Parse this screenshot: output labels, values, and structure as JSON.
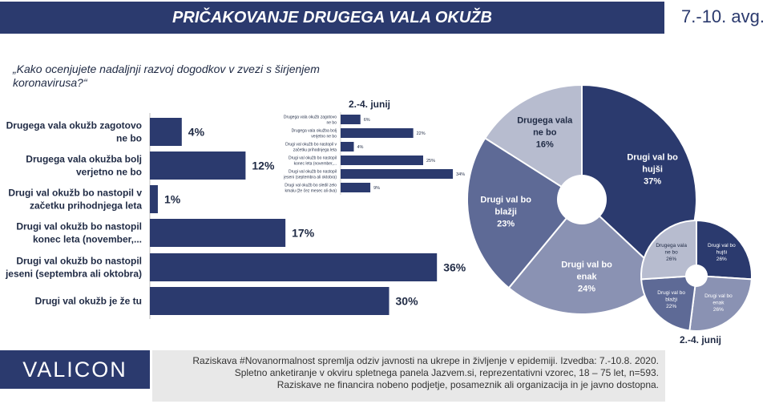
{
  "header": {
    "title": "PRIČAKOVANJE DRUGEGA VALA OKUŽB",
    "date": "7.-10. avg."
  },
  "question": "„Kako ocenjujete nadaljnji razvoj dogodkov v zvezi s širjenjem koronavirusa?“",
  "colors": {
    "navy": "#2b3a6e",
    "mid": "#5e6a96",
    "light": "#8a92b3",
    "pale": "#b7bccf"
  },
  "chart_data": [
    {
      "type": "bar",
      "orientation": "horizontal",
      "categories": [
        "Drugega vala okužb zagotovo ne bo",
        "Drugega vala okužba bolj verjetno ne bo",
        "Drugi val okužb bo nastopil v začetku prihodnjega leta",
        "Drugi val okužb bo nastopil konec leta (november,...",
        "Drugi val okužb bo nastopil jeseni (septembra ali oktobra)",
        "Drugi val okužb je že tu"
      ],
      "category_lines": [
        [
          "Drugega vala okužb zagotovo",
          "ne bo"
        ],
        [
          "Drugega vala okužba bolj",
          "verjetno ne bo"
        ],
        [
          "Drugi val okužb bo nastopil v",
          "začetku prihodnjega leta"
        ],
        [
          "Drugi val okužb bo nastopil",
          "konec leta (november,..."
        ],
        [
          "Drugi val okužb bo nastopil",
          "jeseni (septembra ali oktobra)"
        ],
        [
          "Drugi val okužb je že tu"
        ]
      ],
      "values": [
        4,
        12,
        1,
        17,
        36,
        30
      ],
      "labels": [
        "4%",
        "12%",
        "1%",
        "17%",
        "36%",
        "30%"
      ]
    },
    {
      "type": "bar",
      "orientation": "horizontal",
      "title": "2.-4. junij",
      "categories": [
        "Drugega vala okužb zagotovo ne bo",
        "Drugega vala okužba bolj verjetno ne bo",
        "Drugi val okužb bo nastopil v začetku prihodnjega leta",
        "Drugi val okužb bo nastopil konec leta (november,...",
        "Drugi val okužb bo nastopil jeseni (septembra ali oktobra)",
        "Drugi val okužb bo sledil zelo kmalu (že čez mesec ali dva)"
      ],
      "category_lines": [
        [
          "Drugega vala okužb zagotovo",
          "ne bo"
        ],
        [
          "Drugega vala okužba bolj",
          "verjetno ne bo"
        ],
        [
          "Drugi val okužb bo nastopil v",
          "začetku prihodnjega leta"
        ],
        [
          "Drugi val okužb bo nastopil",
          "konec leta (november,..."
        ],
        [
          "Drugi val okužb bo nastopil",
          "jeseni (septembra ali oktobra)"
        ],
        [
          "Drugi val okužb bo sledil zelo",
          "kmalu (že čez mesec ali dva)"
        ]
      ],
      "values": [
        6,
        22,
        4,
        25,
        34,
        9
      ],
      "labels": [
        "6%",
        "22%",
        "4%",
        "25%",
        "34%",
        "9%"
      ]
    },
    {
      "type": "pie",
      "slices": [
        {
          "lines": [
            "Drugi val bo",
            "hujši",
            "37%"
          ],
          "value": 37,
          "color": "#2b3a6e",
          "text_color": "#ffffff"
        },
        {
          "lines": [
            "Drugi val bo",
            "enak",
            "24%"
          ],
          "value": 24,
          "color": "#8a92b3",
          "text_color": "#ffffff"
        },
        {
          "lines": [
            "Drugi val bo",
            "blažji",
            "23%"
          ],
          "value": 23,
          "color": "#5e6a96",
          "text_color": "#ffffff"
        },
        {
          "lines": [
            "Drugega vala",
            "ne bo",
            "16%"
          ],
          "value": 16,
          "color": "#b7bccf",
          "text_color": "#1f2a44"
        }
      ]
    },
    {
      "type": "pie",
      "title": "2.-4. junij",
      "slices": [
        {
          "lines": [
            "Drugi val bo",
            "hujši",
            "26%"
          ],
          "value": 26,
          "color": "#2b3a6e",
          "text_color": "#ffffff"
        },
        {
          "lines": [
            "Drugi val bo",
            "enak",
            "26%"
          ],
          "value": 26,
          "color": "#8a92b3",
          "text_color": "#ffffff"
        },
        {
          "lines": [
            "Drugi val bo",
            "blažji",
            "22%"
          ],
          "value": 22,
          "color": "#5e6a96",
          "text_color": "#ffffff"
        },
        {
          "lines": [
            "Drugega vala",
            "ne bo",
            "26%"
          ],
          "value": 26,
          "color": "#b7bccf",
          "text_color": "#1f2a44"
        }
      ]
    }
  ],
  "footer": {
    "logo": "VALICON",
    "lines": [
      "Raziskava #Novanormalnost spremlja odziv javnosti na ukrepe in življenje v epidemiji. Izvedba: 7.-10.8. 2020.",
      "Spletno anketiranje v okviru spletnega panela Jazvem.si, reprezentativni vzorec, 18 – 75 let, n=593.",
      "Raziskave ne financira nobeno podjetje, posameznik ali organizacija in je javno dostopna."
    ]
  }
}
